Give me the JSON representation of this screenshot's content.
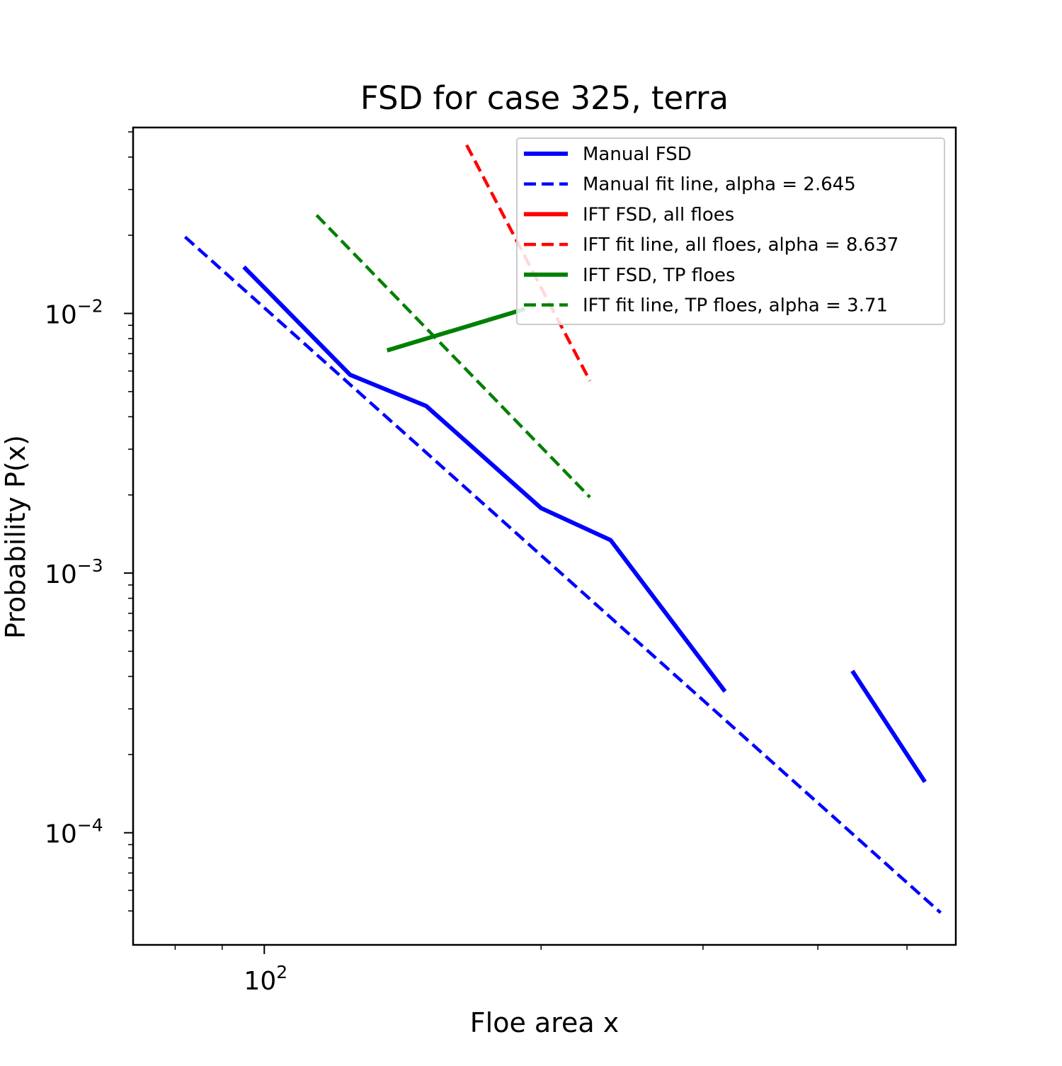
{
  "chart_data": {
    "type": "line",
    "title": "FSD for case 325, terra",
    "xlabel": "Floe area x",
    "ylabel": "Probability P(x)",
    "xscale": "log",
    "yscale": "log",
    "xlim": [
      72,
      565
    ],
    "ylim": [
      3.7e-05,
      0.052
    ],
    "grid": false,
    "legend_position": "top-right",
    "x_tick_labels": [
      {
        "x": 100,
        "base": "10",
        "exp": "2"
      }
    ],
    "y_tick_labels": [
      {
        "y": 0.01,
        "base": "10",
        "exp": "−2"
      },
      {
        "y": 0.001,
        "base": "10",
        "exp": "−3"
      },
      {
        "y": 0.0001,
        "base": "10",
        "exp": "−4"
      }
    ],
    "x_minor_ticks": [
      80,
      90,
      200,
      300,
      400,
      500
    ],
    "y_minor_ticks": [
      5e-05,
      6e-05,
      7e-05,
      8e-05,
      9e-05,
      0.0002,
      0.0003,
      0.0004,
      0.0005,
      0.0006,
      0.0007,
      0.0008,
      0.0009,
      0.002,
      0.003,
      0.004,
      0.005,
      0.006,
      0.007,
      0.008,
      0.009,
      0.02,
      0.03,
      0.04,
      0.05
    ],
    "series": [
      {
        "name": "Manual FSD",
        "color": "#0000ff",
        "style": "solid",
        "segments": [
          [
            [
              95,
              0.0151
            ],
            [
              103,
              0.0113
            ],
            [
              124,
              0.0058
            ],
            [
              150,
              0.0044
            ],
            [
              200,
              0.00178
            ],
            [
              238,
              0.00134
            ],
            [
              317,
              0.00035
            ]
          ],
          [
            [
              436,
              0.00042
            ],
            [
              523,
              0.000157
            ]
          ]
        ]
      },
      {
        "name": "Manual fit line, alpha = 2.645",
        "color": "#0000ff",
        "style": "dashed",
        "segments": [
          [
            [
              82,
              0.0197
            ],
            [
              544,
              4.92e-05
            ]
          ]
        ]
      },
      {
        "name": "IFT FSD, all floes",
        "color": "#ff0000",
        "style": "solid",
        "segments": []
      },
      {
        "name": "IFT fit line, all floes, alpha = 8.637",
        "color": "#ff0000",
        "style": "dashed",
        "segments": [
          [
            [
              166,
              0.0445
            ],
            [
              226,
              0.0055
            ]
          ]
        ]
      },
      {
        "name": "IFT FSD, TP floes",
        "color": "#008000",
        "style": "solid",
        "segments": [
          [
            [
              136,
              0.0072
            ],
            [
              192,
              0.0104
            ]
          ]
        ]
      },
      {
        "name": "IFT fit line, TP floes, alpha = 3.71",
        "color": "#008000",
        "style": "dashed",
        "segments": [
          [
            [
              114,
              0.0239
            ],
            [
              226,
              0.00196
            ]
          ]
        ]
      }
    ]
  }
}
